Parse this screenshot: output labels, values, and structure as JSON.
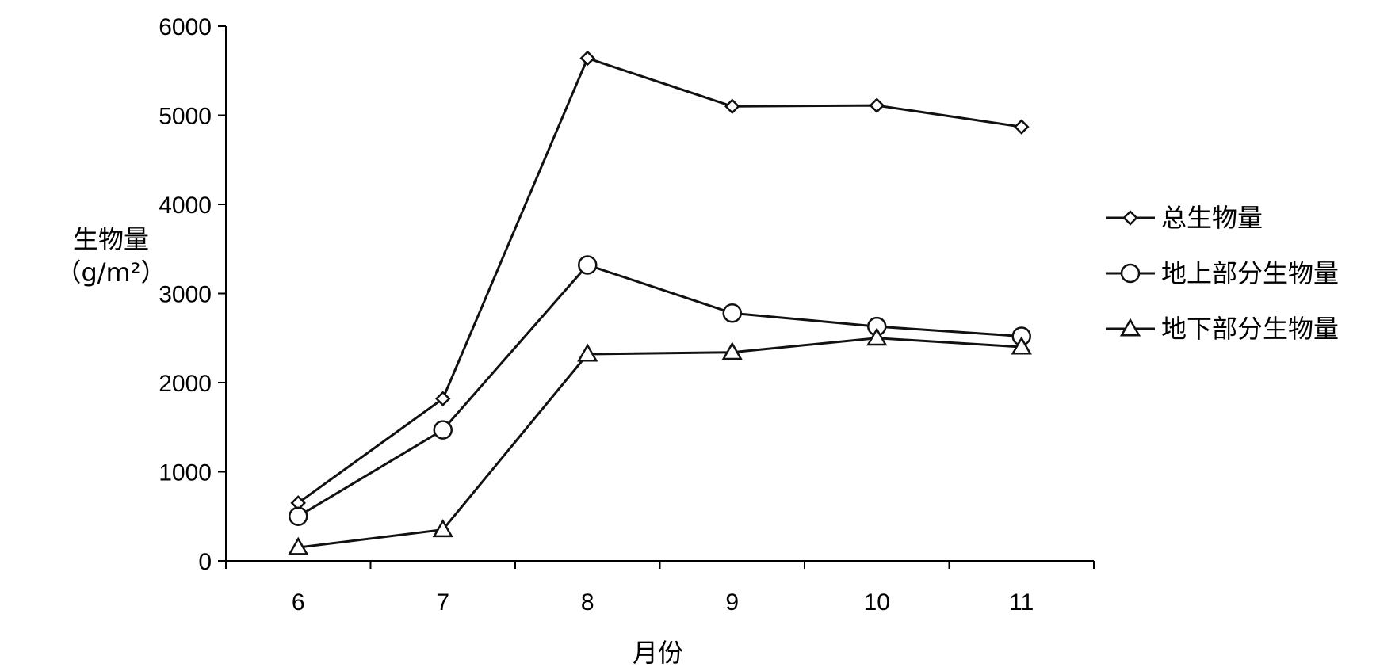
{
  "chart_data": {
    "type": "line",
    "title": "",
    "xlabel": "月份",
    "ylabel_line1": "生物量",
    "ylabel_line2": "（g/m²）",
    "categories": [
      "6",
      "7",
      "8",
      "9",
      "10",
      "11"
    ],
    "ylim": [
      0,
      6000
    ],
    "yticks": [
      0,
      1000,
      2000,
      3000,
      4000,
      5000,
      6000
    ],
    "grid": false,
    "legend_position": "right",
    "series": [
      {
        "name": "总生物量",
        "marker": "diamond",
        "values": [
          650,
          1820,
          5640,
          5100,
          5110,
          4870
        ]
      },
      {
        "name": "地上部分生物量",
        "marker": "circle",
        "values": [
          500,
          1470,
          3320,
          2780,
          2630,
          2520
        ]
      },
      {
        "name": "地下部分生物量",
        "marker": "triangle",
        "values": [
          150,
          350,
          2320,
          2340,
          2500,
          2400
        ]
      }
    ],
    "colors": {
      "line": "#111111",
      "axis": "#000000"
    }
  }
}
